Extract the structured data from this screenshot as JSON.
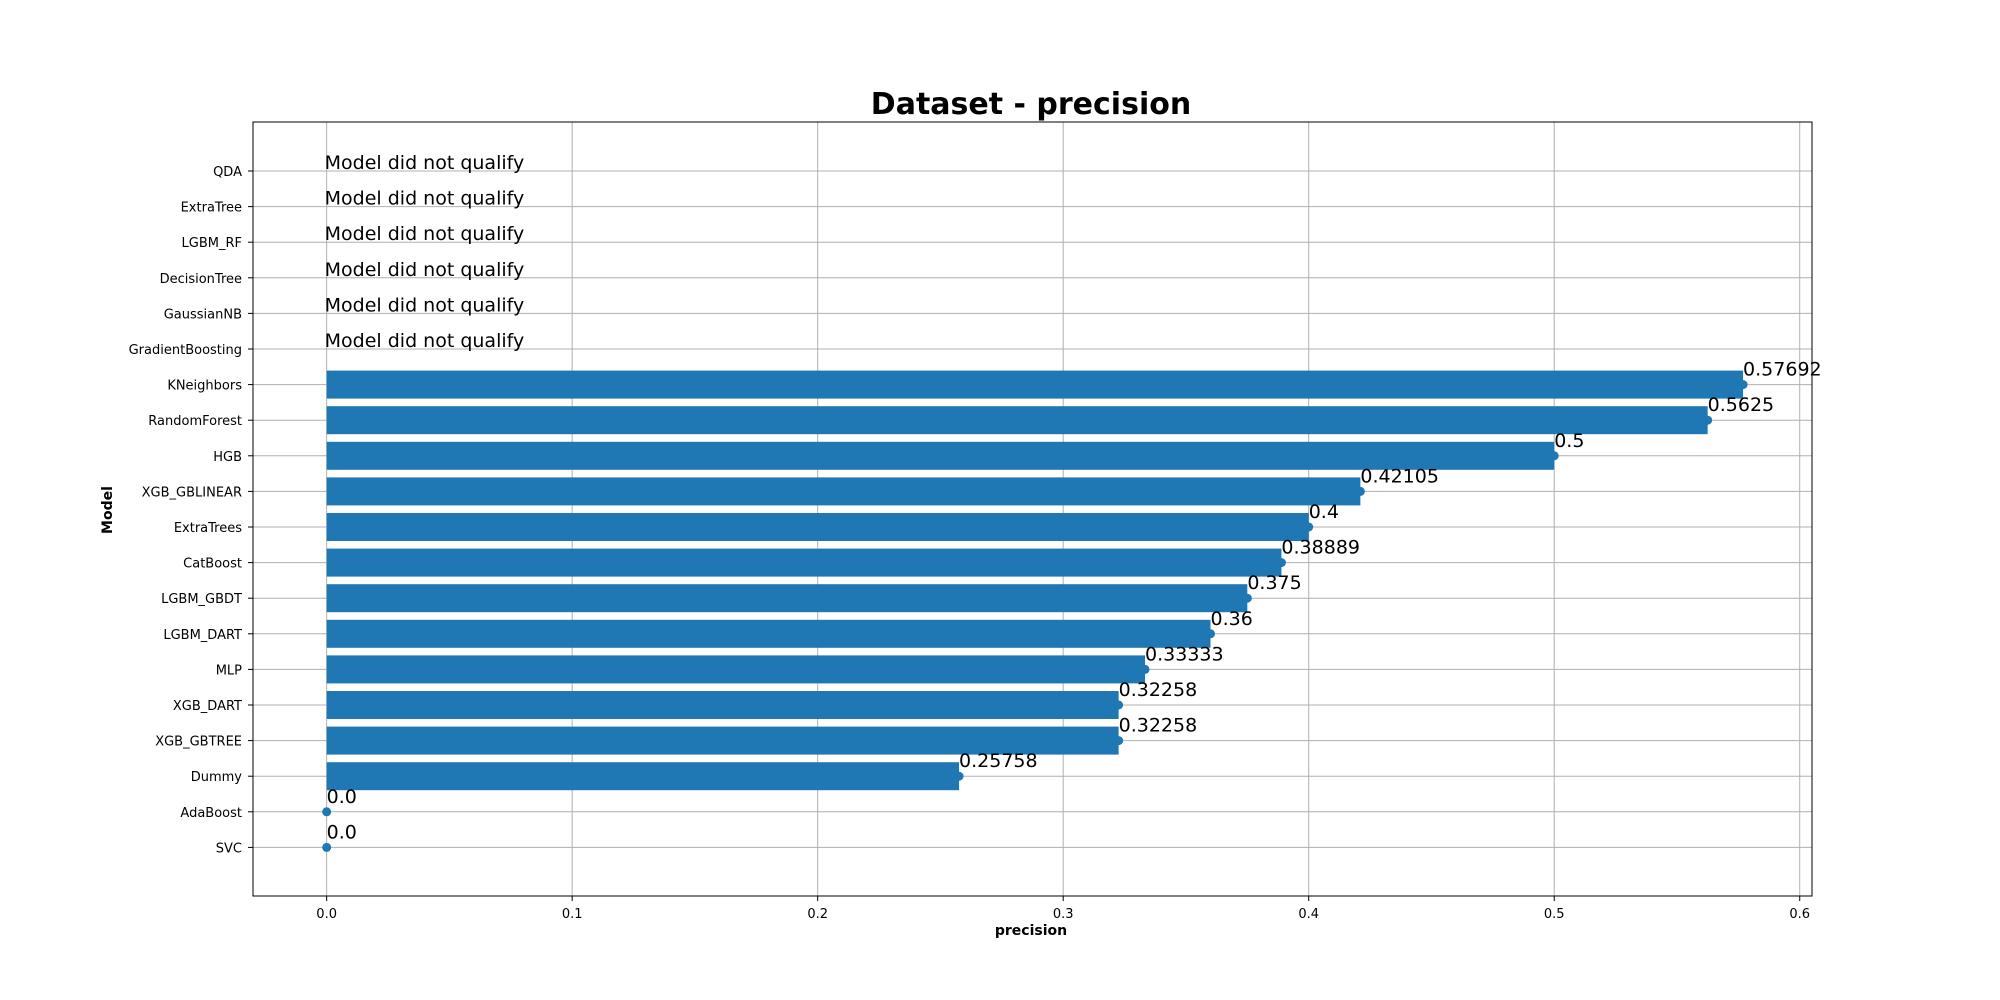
{
  "chart_data": {
    "type": "bar",
    "orientation": "horizontal",
    "title": "Dataset - precision",
    "xlabel": "precision",
    "ylabel": "Model",
    "xlim": [
      -0.03,
      0.605
    ],
    "xticks": [
      "0.0",
      "0.1",
      "0.2",
      "0.3",
      "0.4",
      "0.5",
      "0.6"
    ],
    "grid": true,
    "bar_color": "#1f77b4",
    "not_qualified_text": "Model did not qualify",
    "categories": [
      "QDA",
      "ExtraTree",
      "LGBM_RF",
      "DecisionTree",
      "GaussianNB",
      "GradientBoosting",
      "KNeighbors",
      "RandomForest",
      "HGB",
      "XGB_GBLINEAR",
      "ExtraTrees",
      "CatBoost",
      "LGBM_GBDT",
      "LGBM_DART",
      "MLP",
      "XGB_DART",
      "XGB_GBTREE",
      "Dummy",
      "AdaBoost",
      "SVC"
    ],
    "values": [
      null,
      null,
      null,
      null,
      null,
      null,
      0.57692,
      0.5625,
      0.5,
      0.42105,
      0.4,
      0.38889,
      0.375,
      0.36,
      0.33333,
      0.32258,
      0.32258,
      0.25758,
      0.0,
      0.0
    ],
    "value_labels": [
      "",
      "",
      "",
      "",
      "",
      "",
      "0.57692",
      "0.5625",
      "0.5",
      "0.42105",
      "0.4",
      "0.38889",
      "0.375",
      "0.36",
      "0.33333",
      "0.32258",
      "0.32258",
      "0.25758",
      "0.0",
      "0.0"
    ]
  }
}
